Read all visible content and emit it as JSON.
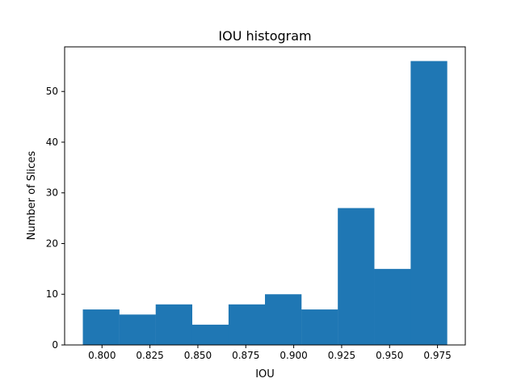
{
  "chart_data": {
    "type": "bar",
    "title": "IOU histogram",
    "xlabel": "IOU",
    "ylabel": "Number of Slices",
    "bin_edges": [
      0.79,
      0.809,
      0.828,
      0.847,
      0.866,
      0.885,
      0.904,
      0.923,
      0.942,
      0.961,
      0.98
    ],
    "values": [
      7,
      6,
      8,
      4,
      8,
      10,
      7,
      27,
      15,
      56
    ],
    "xlim": [
      0.7805,
      0.9895
    ],
    "ylim": [
      0,
      58.8
    ],
    "x_ticks": [
      "0.800",
      "0.825",
      "0.850",
      "0.875",
      "0.900",
      "0.925",
      "0.950",
      "0.975"
    ],
    "y_ticks": [
      "0",
      "10",
      "20",
      "30",
      "40",
      "50"
    ],
    "bar_color": "#1f77b4",
    "grid": false,
    "legend": "none"
  }
}
